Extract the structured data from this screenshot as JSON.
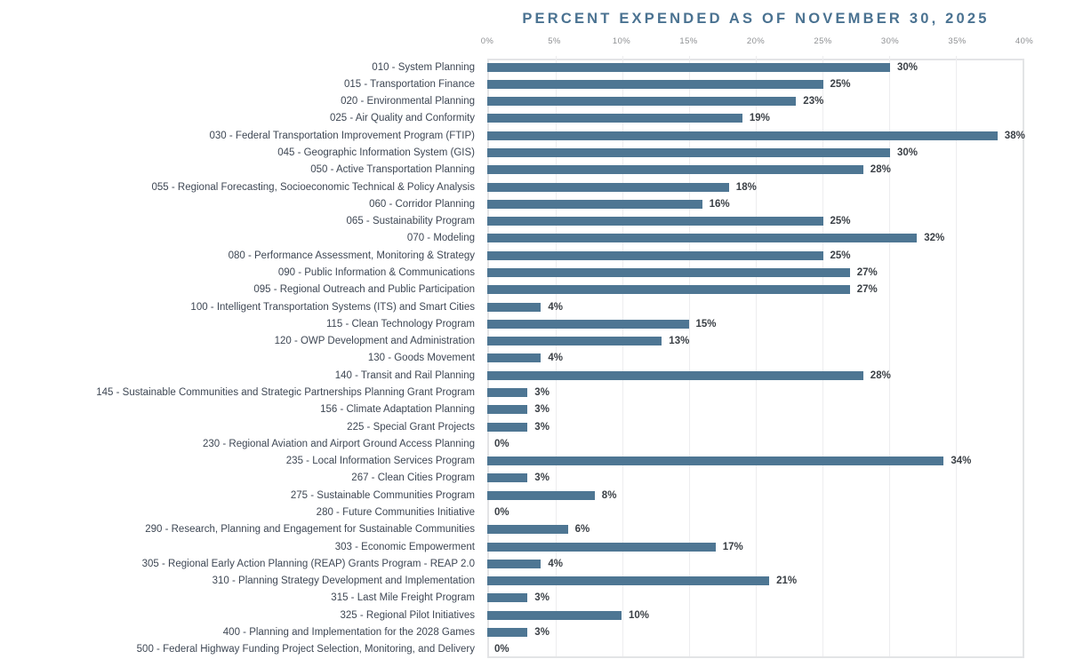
{
  "chart_data": {
    "type": "bar",
    "orientation": "horizontal",
    "title": "PERCENT EXPENDED AS OF NOVEMBER 30, 2025",
    "categories": [
      "010 - System Planning",
      "015 - Transportation Finance",
      "020 - Environmental Planning",
      "025 - Air Quality and Conformity",
      "030 - Federal Transportation Improvement Program (FTIP)",
      "045 - Geographic Information System (GIS)",
      "050 - Active Transportation Planning",
      "055 - Regional Forecasting, Socioeconomic Technical & Policy Analysis",
      "060 - Corridor Planning",
      "065 - Sustainability Program",
      "070 - Modeling",
      "080 - Performance Assessment, Monitoring & Strategy",
      "090 - Public Information & Communications",
      "095 - Regional Outreach and Public Participation",
      "100 - Intelligent Transportation Systems (ITS) and Smart Cities",
      "115 - Clean Technology Program",
      "120 - OWP Development and Administration",
      "130 - Goods Movement",
      "140 - Transit and Rail Planning",
      "145 - Sustainable Communities and Strategic Partnerships Planning Grant Program",
      "156 - Climate Adaptation Planning",
      "225 - Special Grant Projects",
      "230 - Regional Aviation and Airport Ground Access Planning",
      "235 - Local Information Services Program",
      "267 - Clean Cities Program",
      "275 - Sustainable Communities Program",
      "280 - Future Communities Initiative",
      "290 - Research, Planning and Engagement for Sustainable Communities",
      "303 - Economic Empowerment",
      "305 - Regional Early Action Planning (REAP) Grants Program - REAP 2.0",
      "310 - Planning Strategy Development and Implementation",
      "315 - Last Mile Freight Program",
      "325 - Regional Pilot Initiatives",
      "400 - Planning and Implementation for the 2028 Games",
      "500 - Federal Highway Funding Project Selection, Monitoring, and Delivery"
    ],
    "values": [
      30,
      25,
      23,
      19,
      38,
      30,
      28,
      18,
      16,
      25,
      32,
      25,
      27,
      27,
      4,
      15,
      13,
      4,
      28,
      3,
      3,
      3,
      0,
      34,
      3,
      8,
      0,
      6,
      17,
      4,
      21,
      3,
      10,
      3,
      0
    ],
    "value_unit": "%",
    "xlabel": "",
    "ylabel": "",
    "xlim": [
      0,
      40
    ],
    "x_ticks": [
      "0%",
      "5%",
      "10%",
      "15%",
      "20%",
      "25%",
      "30%",
      "35%",
      "40%"
    ],
    "grid": true,
    "legend": false,
    "colors": {
      "bar": "#4e7693",
      "title": "#4a7291",
      "category_label": "#3e4754",
      "value_label": "#3b4046",
      "tick_label": "#8e9093",
      "gridline": "#ededef",
      "plot_border": "#e3e4e6",
      "background": "#ffffff"
    }
  }
}
